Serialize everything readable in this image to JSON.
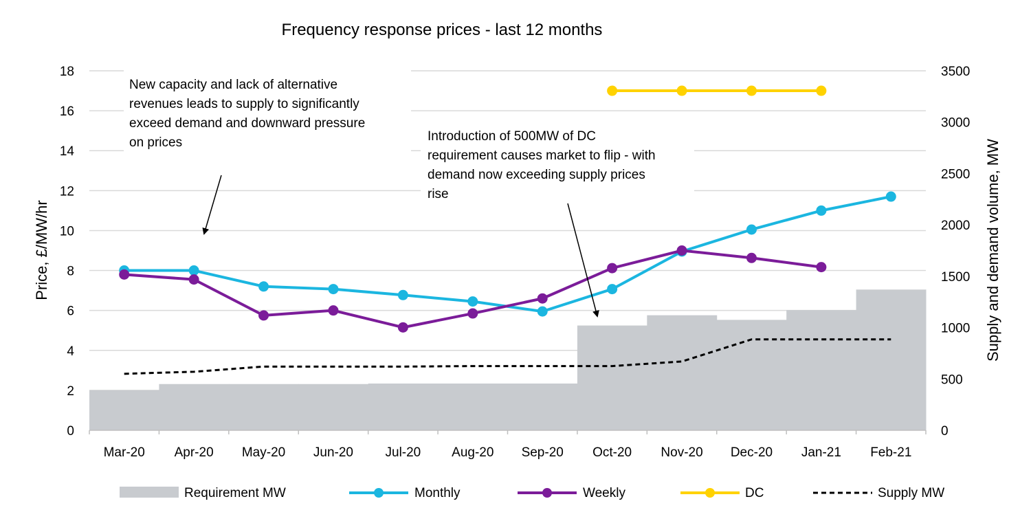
{
  "chart_data": {
    "type": "combo",
    "title": "Frequency response prices - last 12 months",
    "categories": [
      "Mar-20",
      "Apr-20",
      "May-20",
      "Jun-20",
      "Jul-20",
      "Aug-20",
      "Sep-20",
      "Oct-20",
      "Nov-20",
      "Dec-20",
      "Jan-21",
      "Feb-21"
    ],
    "ylabel": "Price, £/MW/hr",
    "ylabel_right": "Supply and demand volume, MW",
    "ylim": [
      0,
      18
    ],
    "ylim_right": [
      0,
      3500
    ],
    "yticks": [
      "0",
      "2",
      "4",
      "6",
      "8",
      "10",
      "12",
      "14",
      "16",
      "18"
    ],
    "yticks_right": [
      "0",
      "500",
      "1000",
      "1500",
      "2000",
      "2500",
      "3000",
      "3500"
    ],
    "grid": true,
    "legend_position": "bottom",
    "series": [
      {
        "name": "Requirement MW",
        "kind": "area",
        "axis": "right",
        "color": "#c8cbcf",
        "values": [
          390,
          450,
          450,
          450,
          455,
          455,
          455,
          1020,
          1120,
          1075,
          1170,
          1370
        ]
      },
      {
        "name": "Monthly",
        "kind": "line",
        "axis": "left",
        "color": "#1bb6e0",
        "values": [
          8.0,
          8.0,
          7.2,
          7.07,
          6.77,
          6.45,
          5.95,
          7.07,
          8.95,
          10.05,
          11.0,
          11.7
        ]
      },
      {
        "name": "Weekly",
        "kind": "line",
        "axis": "left",
        "color": "#7b1c99",
        "values": [
          7.8,
          7.55,
          5.75,
          6.0,
          5.15,
          5.85,
          6.6,
          8.12,
          9.0,
          8.63,
          8.17,
          null
        ]
      },
      {
        "name": "DC",
        "kind": "line",
        "axis": "left",
        "color": "#ffd200",
        "values": [
          null,
          null,
          null,
          null,
          null,
          null,
          null,
          17.0,
          17.0,
          17.0,
          17.0,
          null
        ]
      },
      {
        "name": "Supply MW",
        "kind": "dashed",
        "axis": "right",
        "color": "#000000",
        "values": [
          550,
          570,
          620,
          620,
          620,
          625,
          625,
          625,
          670,
          885,
          885,
          885
        ]
      }
    ],
    "annotations": [
      {
        "lines": [
          "New capacity and lack of alternative",
          "revenues leads to supply to significantly",
          "exceed demand and downward pressure",
          "on prices"
        ]
      },
      {
        "lines": [
          "Introduction of 500MW of DC",
          "requirement causes market to flip - with",
          "demand now exceeding supply prices",
          "rise"
        ]
      }
    ]
  }
}
